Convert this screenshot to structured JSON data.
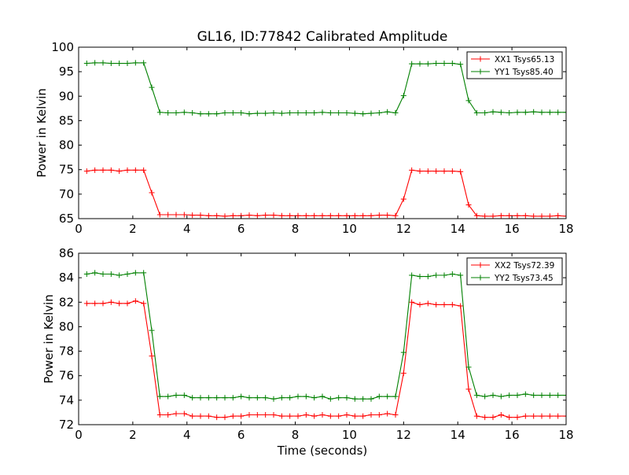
{
  "chart_data": [
    {
      "type": "line",
      "title": "GL16, ID:77842 Calibrated Amplitude",
      "xlabel": "",
      "ylabel": "Power in Kelvin",
      "xlim": [
        0,
        18
      ],
      "ylim": [
        65,
        100
      ],
      "xticks": [
        0,
        2,
        4,
        6,
        8,
        10,
        12,
        14,
        16,
        18
      ],
      "yticks": [
        65,
        70,
        75,
        80,
        85,
        90,
        95,
        100
      ],
      "legend": "top-right",
      "grid": false,
      "x": [
        0.3,
        0.6,
        0.9,
        1.2,
        1.5,
        1.8,
        2.1,
        2.4,
        2.7,
        3.0,
        3.3,
        3.6,
        3.9,
        4.2,
        4.5,
        4.8,
        5.1,
        5.4,
        5.7,
        6.0,
        6.3,
        6.6,
        6.9,
        7.2,
        7.5,
        7.8,
        8.1,
        8.4,
        8.7,
        9.0,
        9.3,
        9.6,
        9.9,
        10.2,
        10.5,
        10.8,
        11.1,
        11.4,
        11.7,
        12.0,
        12.3,
        12.6,
        12.9,
        13.2,
        13.5,
        13.8,
        14.1,
        14.4,
        14.7,
        15.0,
        15.3,
        15.6,
        15.9,
        16.2,
        16.5,
        16.8,
        17.1,
        17.4,
        17.7,
        18.0
      ],
      "series": [
        {
          "name": "XX1 Tsys65.13",
          "color": "#ff0000",
          "values": [
            74.7,
            74.9,
            74.9,
            74.9,
            74.7,
            74.9,
            74.9,
            74.9,
            70.3,
            65.8,
            65.8,
            65.8,
            65.8,
            65.7,
            65.7,
            65.6,
            65.6,
            65.5,
            65.6,
            65.6,
            65.7,
            65.6,
            65.7,
            65.7,
            65.6,
            65.6,
            65.6,
            65.6,
            65.6,
            65.6,
            65.6,
            65.6,
            65.6,
            65.6,
            65.6,
            65.6,
            65.7,
            65.7,
            65.6,
            69.0,
            74.9,
            74.7,
            74.7,
            74.7,
            74.7,
            74.7,
            74.6,
            67.8,
            65.6,
            65.5,
            65.5,
            65.6,
            65.6,
            65.6,
            65.6,
            65.5,
            65.5,
            65.5,
            65.6,
            65.5
          ]
        },
        {
          "name": "YY1 Tsys85.40",
          "color": "#008000",
          "values": [
            96.7,
            96.8,
            96.8,
            96.7,
            96.7,
            96.7,
            96.8,
            96.8,
            91.8,
            86.7,
            86.6,
            86.6,
            86.7,
            86.6,
            86.4,
            86.4,
            86.4,
            86.6,
            86.6,
            86.6,
            86.4,
            86.5,
            86.5,
            86.6,
            86.5,
            86.6,
            86.6,
            86.6,
            86.6,
            86.7,
            86.6,
            86.6,
            86.6,
            86.5,
            86.4,
            86.5,
            86.6,
            86.8,
            86.6,
            90.1,
            96.6,
            96.6,
            96.6,
            96.7,
            96.7,
            96.7,
            96.5,
            89.1,
            86.6,
            86.6,
            86.8,
            86.7,
            86.6,
            86.7,
            86.7,
            86.8,
            86.7,
            86.7,
            86.7,
            86.7
          ]
        }
      ]
    },
    {
      "type": "line",
      "title": "",
      "xlabel": "Time (seconds)",
      "ylabel": "Power in Kelvin",
      "xlim": [
        0,
        18
      ],
      "ylim": [
        72,
        86
      ],
      "xticks": [
        0,
        2,
        4,
        6,
        8,
        10,
        12,
        14,
        16,
        18
      ],
      "yticks": [
        72,
        74,
        76,
        78,
        80,
        82,
        84,
        86
      ],
      "legend": "top-right",
      "grid": false,
      "x": [
        0.3,
        0.6,
        0.9,
        1.2,
        1.5,
        1.8,
        2.1,
        2.4,
        2.7,
        3.0,
        3.3,
        3.6,
        3.9,
        4.2,
        4.5,
        4.8,
        5.1,
        5.4,
        5.7,
        6.0,
        6.3,
        6.6,
        6.9,
        7.2,
        7.5,
        7.8,
        8.1,
        8.4,
        8.7,
        9.0,
        9.3,
        9.6,
        9.9,
        10.2,
        10.5,
        10.8,
        11.1,
        11.4,
        11.7,
        12.0,
        12.3,
        12.6,
        12.9,
        13.2,
        13.5,
        13.8,
        14.1,
        14.4,
        14.7,
        15.0,
        15.3,
        15.6,
        15.9,
        16.2,
        16.5,
        16.8,
        17.1,
        17.4,
        17.7,
        18.0
      ],
      "series": [
        {
          "name": "XX2 Tsys72.39",
          "color": "#ff0000",
          "values": [
            81.9,
            81.9,
            81.9,
            82.0,
            81.9,
            81.9,
            82.1,
            81.9,
            77.6,
            72.8,
            72.8,
            72.9,
            72.9,
            72.7,
            72.7,
            72.7,
            72.6,
            72.6,
            72.7,
            72.7,
            72.8,
            72.8,
            72.8,
            72.8,
            72.7,
            72.7,
            72.7,
            72.8,
            72.7,
            72.8,
            72.7,
            72.7,
            72.8,
            72.7,
            72.7,
            72.8,
            72.8,
            72.9,
            72.8,
            76.2,
            82.0,
            81.8,
            81.9,
            81.8,
            81.8,
            81.8,
            81.7,
            74.9,
            72.7,
            72.6,
            72.6,
            72.8,
            72.6,
            72.6,
            72.7,
            72.7,
            72.7,
            72.7,
            72.7,
            72.7
          ]
        },
        {
          "name": "YY2 Tsys73.45",
          "color": "#008000",
          "values": [
            84.3,
            84.4,
            84.3,
            84.3,
            84.2,
            84.3,
            84.4,
            84.4,
            79.7,
            74.3,
            74.3,
            74.4,
            74.4,
            74.2,
            74.2,
            74.2,
            74.2,
            74.2,
            74.2,
            74.3,
            74.2,
            74.2,
            74.2,
            74.1,
            74.2,
            74.2,
            74.3,
            74.3,
            74.2,
            74.3,
            74.1,
            74.2,
            74.2,
            74.1,
            74.1,
            74.1,
            74.3,
            74.3,
            74.3,
            77.9,
            84.2,
            84.1,
            84.1,
            84.2,
            84.2,
            84.3,
            84.2,
            76.7,
            74.4,
            74.3,
            74.4,
            74.3,
            74.4,
            74.4,
            74.5,
            74.4,
            74.4,
            74.4,
            74.4,
            74.4
          ]
        }
      ]
    }
  ]
}
